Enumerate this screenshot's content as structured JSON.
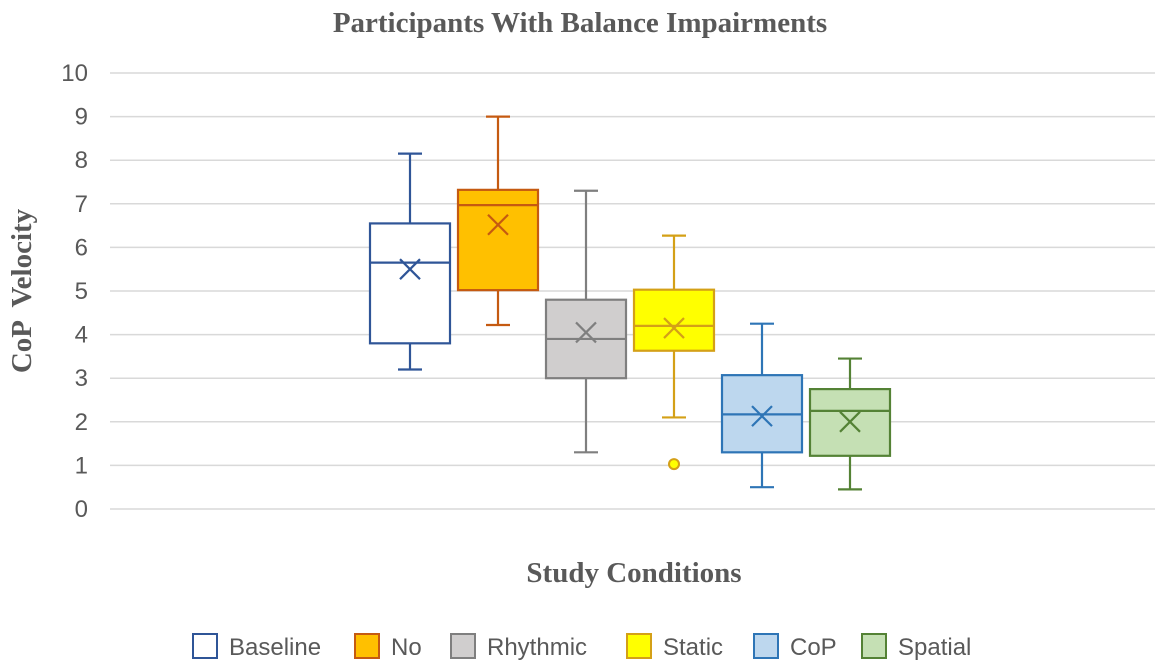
{
  "chart_data": {
    "type": "boxplot",
    "title": "Participants With Balance Impairments",
    "xlabel": "Study Conditions",
    "ylabel": "CoP  Velocity",
    "ylim": [
      0,
      10
    ],
    "yticks": [
      "0",
      "1",
      "2",
      "3",
      "4",
      "5",
      "6",
      "7",
      "8",
      "9",
      "10"
    ],
    "grid": true,
    "legend_position": "bottom",
    "series": [
      {
        "name": "Baseline",
        "min": 3.2,
        "q1": 3.8,
        "median": 5.65,
        "q3": 6.55,
        "max": 8.15,
        "mean": 5.5,
        "outliers": [],
        "fill": "#ffffff",
        "stroke": "#2f5597"
      },
      {
        "name": "No",
        "min": 4.22,
        "q1": 5.02,
        "median": 6.97,
        "q3": 7.32,
        "max": 9.0,
        "mean": 6.52,
        "outliers": [],
        "fill": "#ffc000",
        "stroke": "#c55a11"
      },
      {
        "name": "Rhythmic",
        "min": 1.3,
        "q1": 3.0,
        "median": 3.9,
        "q3": 4.8,
        "max": 7.3,
        "mean": 4.05,
        "outliers": [],
        "fill": "#d0cece",
        "stroke": "#7f7f7f"
      },
      {
        "name": "Static",
        "min": 2.1,
        "q1": 3.63,
        "median": 4.2,
        "q3": 5.03,
        "max": 6.27,
        "mean": 4.15,
        "outliers": [
          1.03
        ],
        "fill": "#ffff00",
        "stroke": "#d4a017"
      },
      {
        "name": "CoP",
        "min": 0.5,
        "q1": 1.3,
        "median": 2.17,
        "q3": 3.07,
        "max": 4.25,
        "mean": 2.13,
        "outliers": [],
        "fill": "#bdd7ee",
        "stroke": "#2e75b6"
      },
      {
        "name": "Spatial",
        "min": 0.45,
        "q1": 1.22,
        "median": 2.25,
        "q3": 2.75,
        "max": 3.45,
        "mean": 2.0,
        "outliers": [],
        "fill": "#c5e0b4",
        "stroke": "#548235"
      }
    ]
  },
  "colors": {
    "gridline": "#d9d9d9",
    "text": "#595959"
  }
}
